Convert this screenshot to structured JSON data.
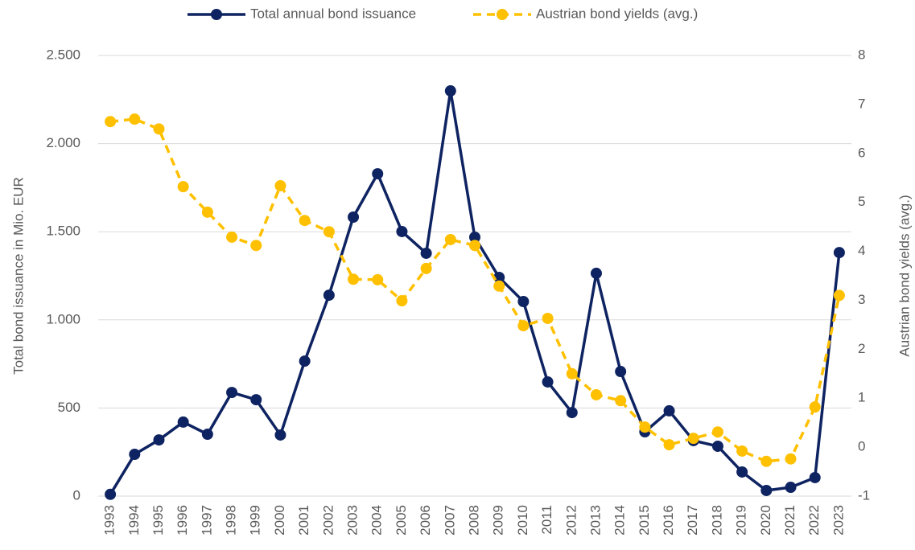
{
  "chart_data": {
    "type": "line",
    "categories": [
      "1993",
      "1994",
      "1995",
      "1996",
      "1997",
      "1998",
      "1999",
      "2000",
      "2001",
      "2002",
      "2003",
      "2004",
      "2005",
      "2006",
      "2007",
      "2008",
      "2009",
      "2010",
      "2011",
      "2012",
      "2013",
      "2014",
      "2015",
      "2016",
      "2017",
      "2018",
      "2019",
      "2020",
      "2021",
      "2022",
      "2023"
    ],
    "series": [
      {
        "name": "Total annual bond issuance",
        "color": "#0e2361",
        "dashed": false,
        "values": [
          10,
          237,
          319,
          420,
          351,
          588,
          547,
          347,
          766,
          1140,
          1583,
          1829,
          1501,
          1378,
          2299,
          1469,
          1241,
          1104,
          648,
          474,
          1264,
          707,
          365,
          484,
          315,
          283,
          137,
          32,
          50,
          105,
          1382
        ]
      },
      {
        "name": "Austrian bond yields (avg.)",
        "color": "#ffc000",
        "dashed": true,
        "axis": "y2",
        "values": [
          6.65,
          6.7,
          6.5,
          5.32,
          4.8,
          4.29,
          4.12,
          5.34,
          4.63,
          4.4,
          3.43,
          3.42,
          2.99,
          3.65,
          4.24,
          4.12,
          3.29,
          2.48,
          2.63,
          1.5,
          1.07,
          0.95,
          0.41,
          0.05,
          0.18,
          0.31,
          -0.08,
          -0.29,
          -0.24,
          0.82,
          3.1
        ]
      }
    ],
    "ylabel": "Total bond issuance in Mio. EUR",
    "y2label": "Austrian bond yields (avg.)",
    "ylim": [
      0,
      2500
    ],
    "yticks": [
      0,
      500,
      {
        "value": 1000,
        "label": "1.000"
      },
      {
        "value": 1500,
        "label": "1.500"
      },
      {
        "value": 2000,
        "label": "2.000"
      },
      {
        "value": 2500,
        "label": "2.500"
      }
    ],
    "y2lim": [
      -1,
      8
    ],
    "y2ticks": [
      -1,
      0,
      1,
      2,
      3,
      4,
      5,
      6,
      7,
      8
    ],
    "grid": true,
    "legend": "top"
  }
}
